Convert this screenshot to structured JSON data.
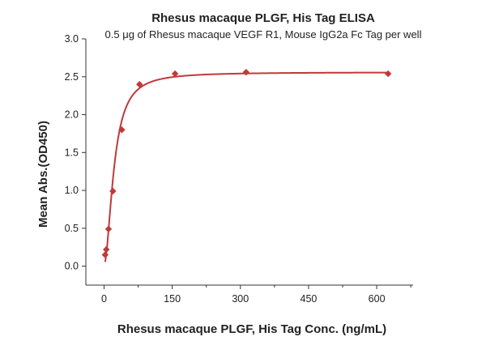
{
  "colors": {
    "series": "#c0393b",
    "axis": "#333333",
    "text": "#222222"
  },
  "chart_data": {
    "type": "scatter",
    "title": "Rhesus macaque PLGF, His Tag ELISA",
    "subtitle": "0.5 μg of Rhesus macaque VEGF R1, Mouse IgG2a Fc Tag per well",
    "xlabel": "Rhesus macaque PLGF, His Tag Conc. (ng/mL)",
    "ylabel": "Mean Abs.(OD450)",
    "xlim": [
      -40,
      680
    ],
    "ylim": [
      -0.25,
      3.0
    ],
    "xticks": [
      0,
      150,
      300,
      450,
      600
    ],
    "yticks": [
      0.0,
      0.5,
      1.0,
      1.5,
      2.0,
      2.5,
      3.0
    ],
    "xtick_labels": [
      "0",
      "150",
      "300",
      "450",
      "600"
    ],
    "ytick_labels": [
      "0.0",
      "0.5",
      "1.0",
      "1.5",
      "2.0",
      "2.5",
      "3.0"
    ],
    "grid": false,
    "legend": "none",
    "fit_curve": true,
    "series": [
      {
        "x": [
          2.4,
          4.9,
          9.8,
          19.5,
          39.1,
          78.1,
          156.3,
          312.5,
          625
        ],
        "y": [
          0.15,
          0.22,
          0.49,
          0.99,
          1.8,
          2.4,
          2.54,
          2.56,
          2.54
        ]
      }
    ]
  }
}
